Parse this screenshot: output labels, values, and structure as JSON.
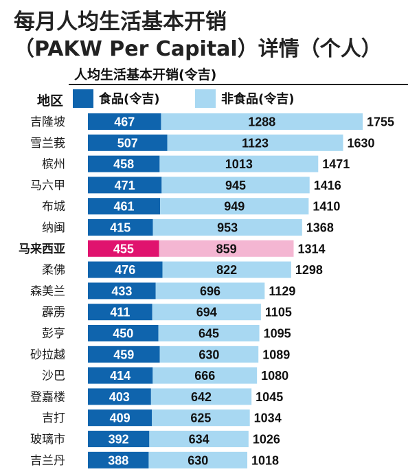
{
  "header": {
    "title_line1": "每月人均生活基本开销",
    "title_line2": "（PAKW Per Capital）详情（个人）",
    "subtitle": "人均生活基本开销(令吉)",
    "region_column_label": "地区"
  },
  "colors": {
    "food": "#0f64ad",
    "nonfood": "#a8d8f2",
    "highlight_food": "#e0136e",
    "highlight_nonfood": "#f4b6d2"
  },
  "chart_data": {
    "type": "bar",
    "orientation": "horizontal",
    "stacked": true,
    "title": "每月人均生活基本开销（PAKW Per Capital）详情（个人）",
    "subtitle": "人均生活基本开销(令吉)",
    "ylabel": "地区",
    "highlight": "马来西亚",
    "legend": [
      "食品(令吉)",
      "非食品(令吉)"
    ],
    "categories": [
      "吉隆坡",
      "雪兰莪",
      "槟州",
      "马六甲",
      "布城",
      "纳闽",
      "马来西亚",
      "柔佛",
      "森美兰",
      "霹雳",
      "彭亨",
      "砂拉越",
      "沙巴",
      "登嘉楼",
      "吉打",
      "玻璃市",
      "吉兰丹"
    ],
    "series": [
      {
        "name": "食品(令吉)",
        "values": [
          467,
          507,
          458,
          471,
          461,
          415,
          455,
          476,
          433,
          411,
          450,
          459,
          414,
          403,
          409,
          392,
          388
        ]
      },
      {
        "name": "非食品(令吉)",
        "values": [
          1288,
          1123,
          1013,
          945,
          949,
          953,
          859,
          822,
          696,
          694,
          645,
          630,
          666,
          642,
          625,
          634,
          630
        ]
      }
    ],
    "totals": [
      1755,
      1630,
      1471,
      1416,
      1410,
      1368,
      1314,
      1298,
      1129,
      1105,
      1095,
      1089,
      1080,
      1045,
      1034,
      1026,
      1018
    ]
  }
}
